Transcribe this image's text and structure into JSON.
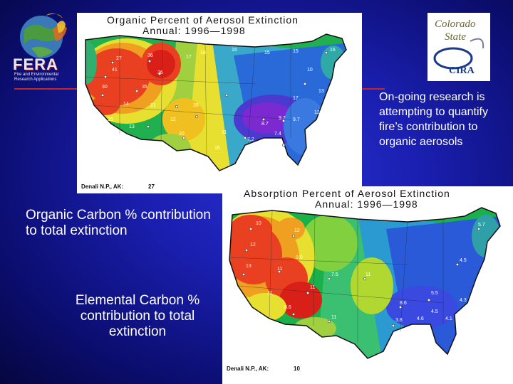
{
  "top_map": {
    "title_line1": "Organic   Percent   of   Aerosol   Extinction",
    "title_line2": "Annual:   1996—1998",
    "footer_label": "Denali  N.P.,  AK:",
    "footer_value": "27",
    "site_labels": [
      "41",
      "27",
      "30",
      "35",
      "36",
      "36",
      "17",
      "18",
      "16",
      "15",
      "15",
      "10",
      "16",
      "17",
      "13",
      "12",
      "17",
      "21",
      "12",
      "36",
      "9.7",
      "8.7",
      "9.7",
      "14",
      "15",
      "13",
      "20",
      "11",
      "7.2",
      "19",
      "17",
      "16",
      "7.4"
    ]
  },
  "bottom_map": {
    "title_line1": "Absorption   Percent   of   Aerosol   Extinction",
    "title_line2": "Annual:   1996—1998",
    "footer_label": "Denali  N.P.,  AK:",
    "footer_value": "10",
    "site_labels": [
      "10",
      "12",
      "13",
      "11",
      "12",
      "11",
      "7.5",
      "11",
      "8.6",
      "5.5",
      "4.5",
      "5.7",
      "3.8",
      "4.5",
      "4.1",
      "4.6",
      "4.3",
      "5.5",
      "6.1",
      "11",
      "8.6",
      "9.0",
      "8",
      "11"
    ]
  },
  "fera_logo": {
    "name": "FERA",
    "sub1": "Fire and Environmental",
    "sub2": "Research Applications"
  },
  "csu_logo": {
    "line1": "Colorado",
    "line2": "State",
    "line3": "CIRA"
  },
  "slide": {
    "research_note": "On-going research is attempting to quantify fire’s contribution to organic aerosols",
    "organic_caption": "Organic Carbon % contribution to total extinction",
    "elemental_caption": "Elemental Carbon % contribution to total extinction"
  },
  "colors": {
    "accent_red": "#c0282a",
    "background": "#1a1fb0"
  }
}
